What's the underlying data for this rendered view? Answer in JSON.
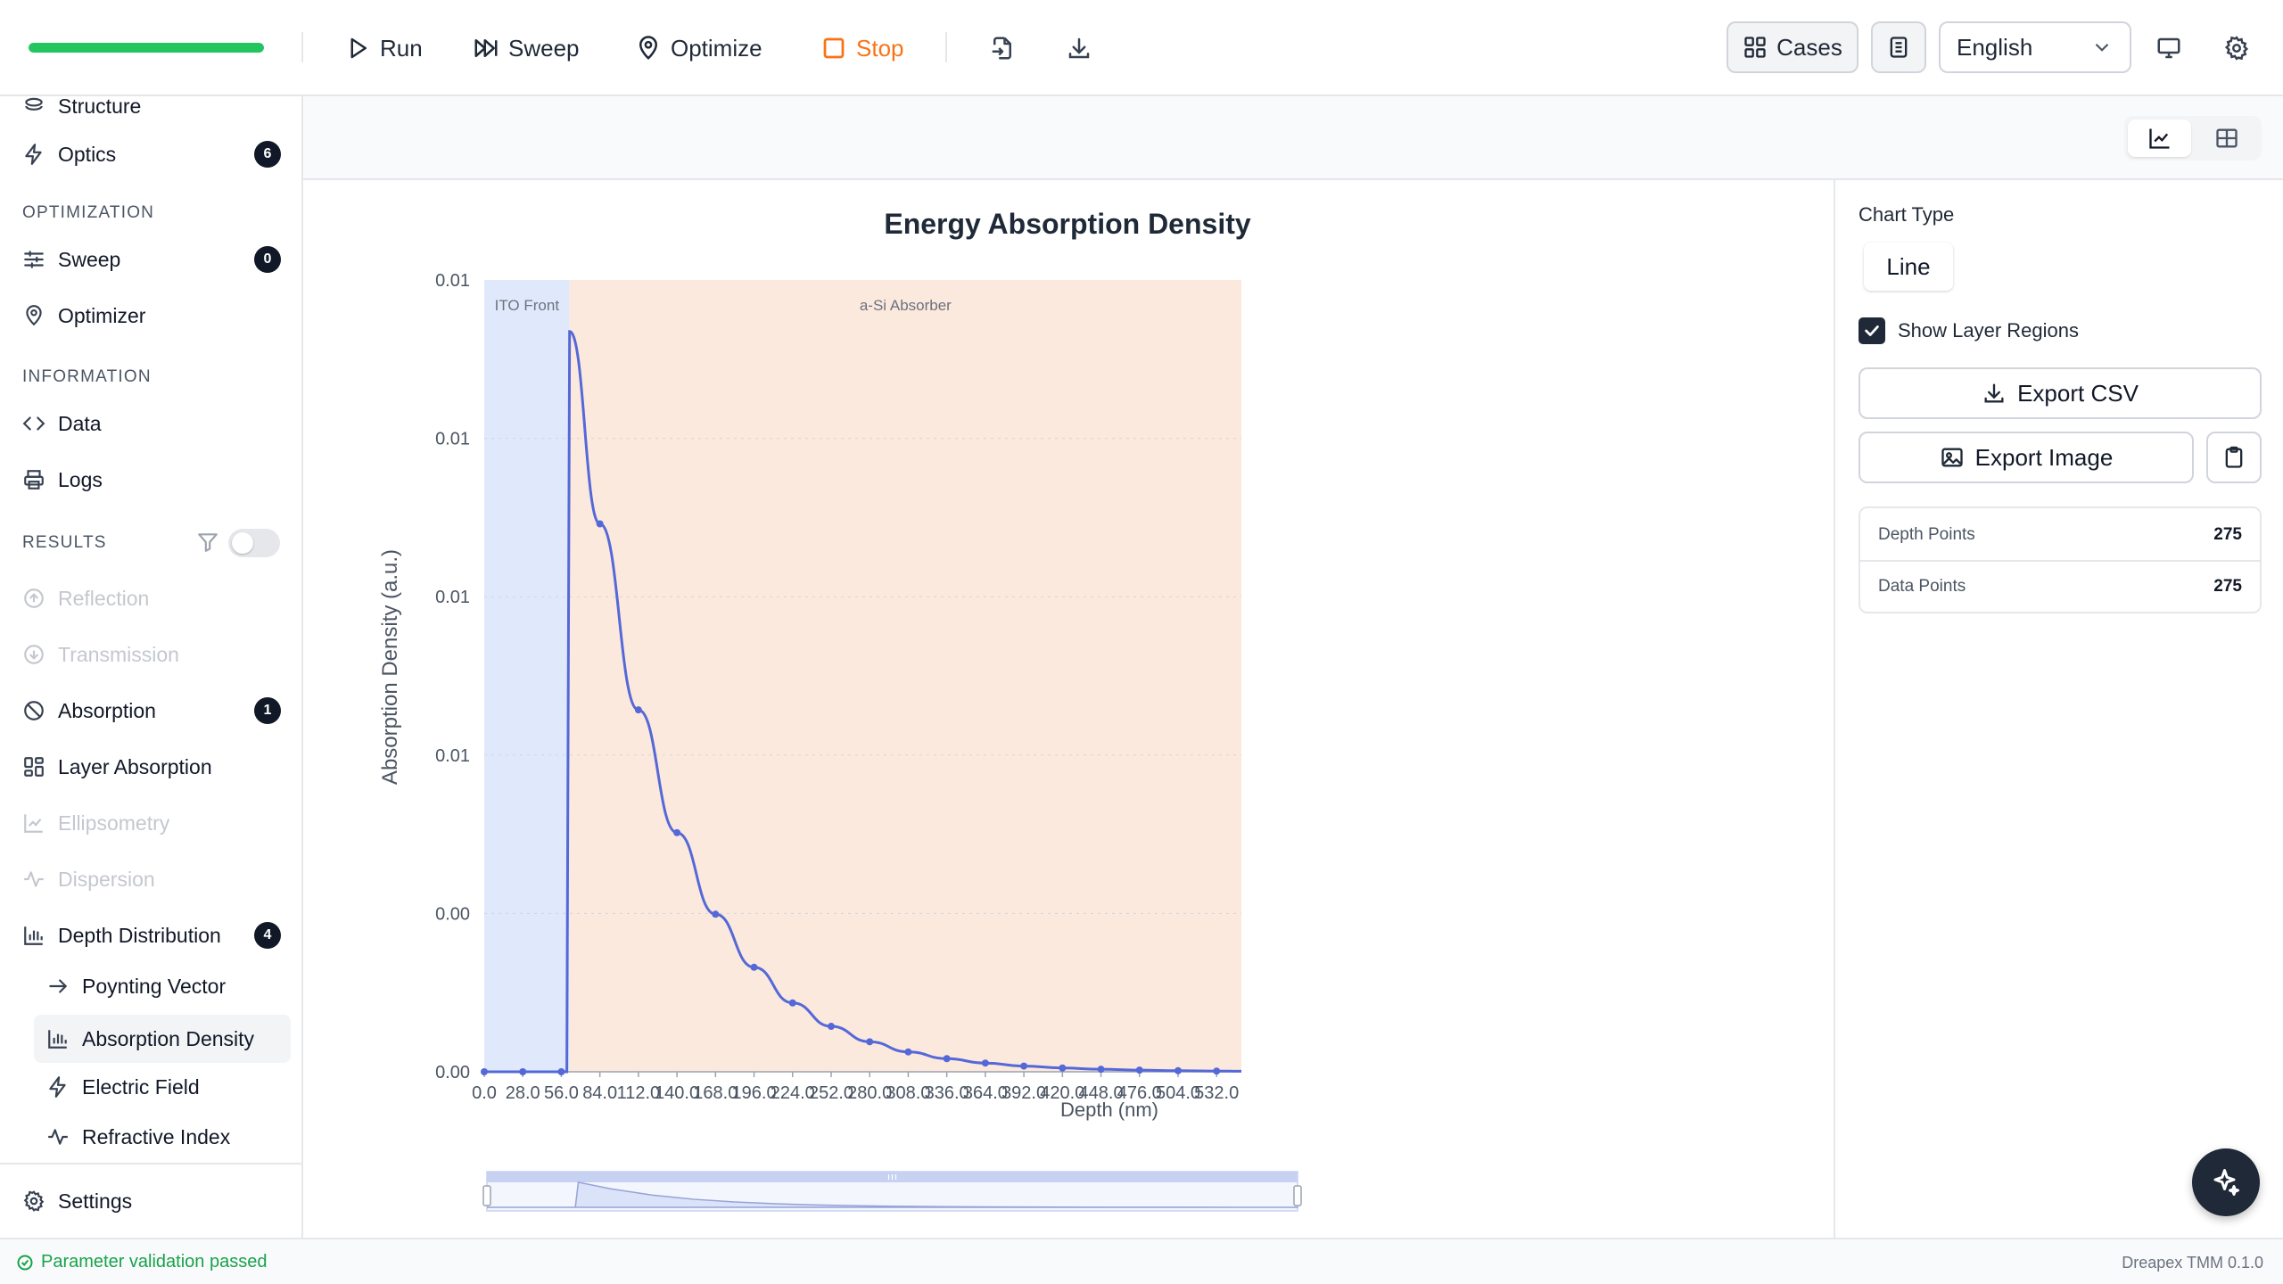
{
  "toolbar": {
    "progress": 1.0,
    "run_label": "Run",
    "sweep_label": "Sweep",
    "optimize_label": "Optimize",
    "stop_label": "Stop",
    "cases_label": "Cases",
    "language": "English"
  },
  "sidebar": {
    "structure_label": "Structure",
    "optics_label": "Optics",
    "optics_badge": "6",
    "optimization_heading": "OPTIMIZATION",
    "sweep_label": "Sweep",
    "sweep_badge": "0",
    "optimizer_label": "Optimizer",
    "information_heading": "INFORMATION",
    "data_label": "Data",
    "logs_label": "Logs",
    "results_heading": "RESULTS",
    "reflection_label": "Reflection",
    "transmission_label": "Transmission",
    "absorption_label": "Absorption",
    "absorption_badge": "1",
    "layer_absorption_label": "Layer Absorption",
    "ellipsometry_label": "Ellipsometry",
    "dispersion_label": "Dispersion",
    "depth_distribution_label": "Depth Distribution",
    "depth_distribution_badge": "4",
    "poynting_vector_label": "Poynting Vector",
    "absorption_density_label": "Absorption Density",
    "electric_field_label": "Electric Field",
    "refractive_index_label": "Refractive Index",
    "settings_label": "Settings"
  },
  "panel": {
    "chart_type_label": "Chart Type",
    "chart_type_value": "Line",
    "show_layer_regions_label": "Show Layer Regions",
    "show_layer_regions_checked": true,
    "export_csv_label": "Export CSV",
    "export_image_label": "Export Image",
    "depth_points_label": "Depth Points",
    "depth_points_value": "275",
    "data_points_label": "Data Points",
    "data_points_value": "275"
  },
  "status": {
    "message": "Parameter validation passed",
    "version": "Dreapex TMM 0.1.0"
  },
  "colors": {
    "progress": "#22c55e",
    "stop": "#f97316",
    "series": "#5468d8",
    "region_ito": "#e0e8fb",
    "region_asi": "#fce9dd",
    "status_ok": "#16a34a"
  },
  "chart_data": {
    "type": "line",
    "title": "Energy Absorption Density",
    "xlabel": "Depth (nm)",
    "ylabel": "Absorption Density (a.u.)",
    "xlim": [
      0,
      550
    ],
    "ylim": [
      0,
      0.01
    ],
    "x_ticks": [
      "0.0",
      "28.0",
      "56.0",
      "84.0",
      "112.0",
      "140.0",
      "168.0",
      "196.0",
      "224.0",
      "252.0",
      "280.0",
      "308.0",
      "336.0",
      "364.0",
      "392.0",
      "420.0",
      "448.0",
      "476.0",
      "504.0",
      "532.0"
    ],
    "y_ticks": [
      "0.00",
      "0.00",
      "0.01",
      "0.01",
      "0.01",
      "0.01"
    ],
    "regions": [
      {
        "label": "ITO Front",
        "start": 0,
        "end": 62
      },
      {
        "label": "a-Si Absorber",
        "start": 62,
        "end": 550
      }
    ],
    "series": [
      {
        "x": [
          0,
          28,
          56,
          60,
          62,
          84,
          112,
          140,
          168,
          196,
          224,
          252,
          280,
          308,
          336,
          364,
          392,
          420,
          448,
          476,
          504,
          532,
          550
        ],
        "y": [
          0,
          0,
          0,
          0,
          0.00935,
          0.00692,
          0.00457,
          0.00302,
          0.00199,
          0.00132,
          0.00087,
          0.000574,
          0.000379,
          0.000251,
          0.000166,
          0.00011,
          7.2e-05,
          4.8e-05,
          3.2e-05,
          2.1e-05,
          1.4e-05,
          9e-06,
          7e-06
        ]
      }
    ],
    "grid": true,
    "legend": "none",
    "zoom_slider": true
  }
}
